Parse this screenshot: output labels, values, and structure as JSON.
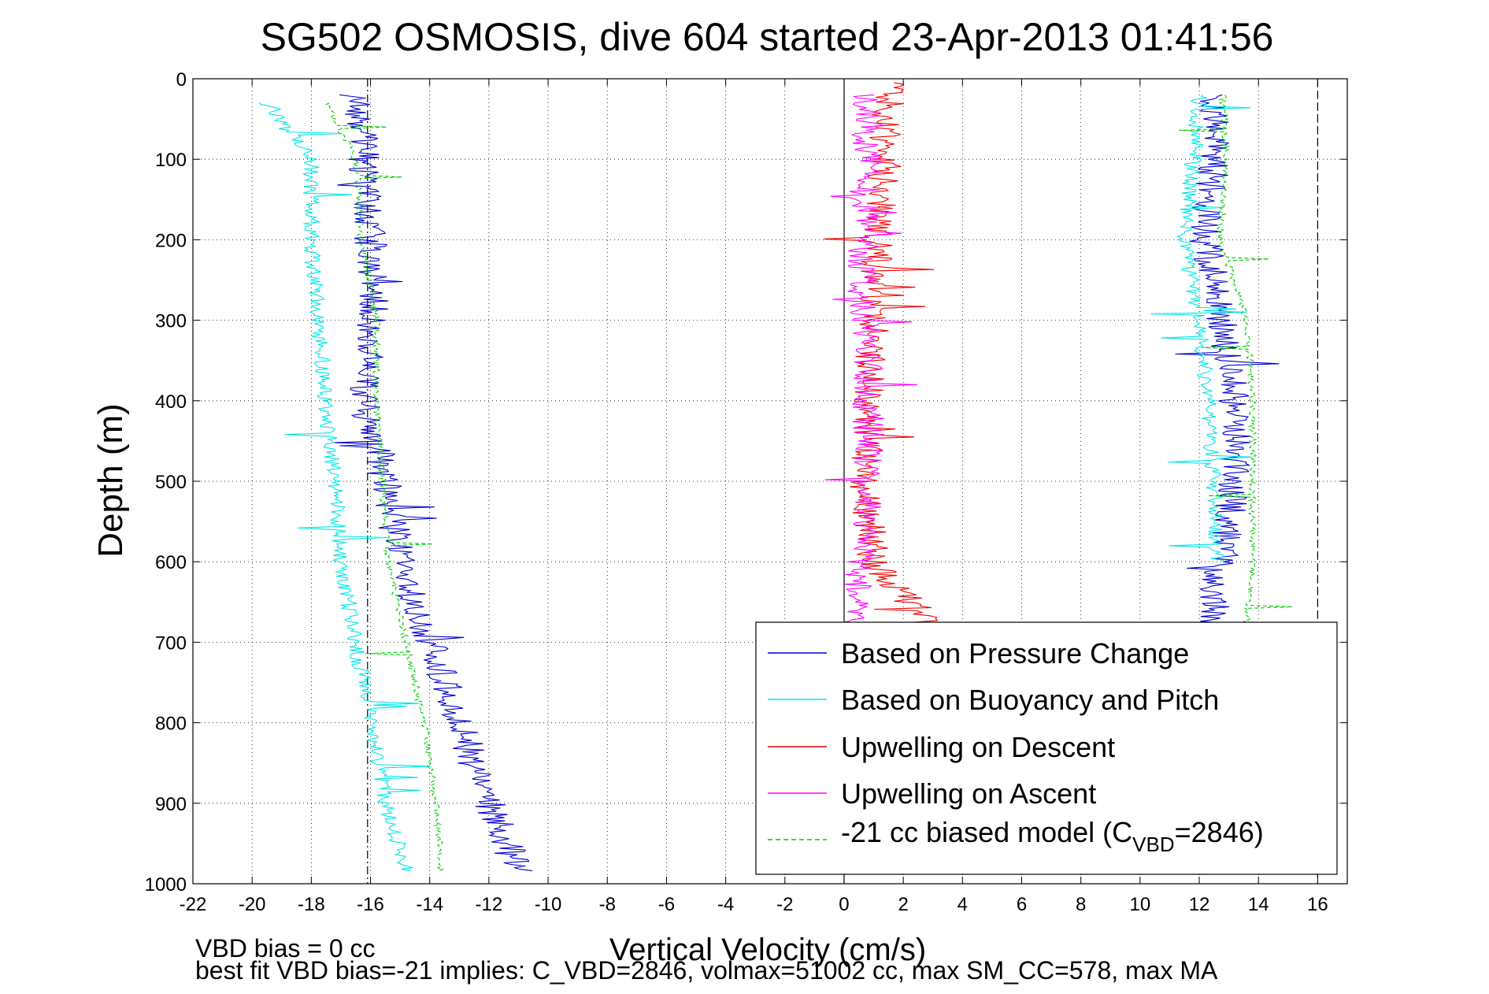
{
  "chart_data": {
    "type": "line",
    "title": "SG502 OSMOSIS, dive 604 started 23-Apr-2013 01:41:56",
    "xlabel": "Vertical Velocity (cm/s)",
    "ylabel": "Depth (m)",
    "xlim": [
      -22,
      17
    ],
    "ylim": [
      1000,
      0
    ],
    "y_reversed": true,
    "x_ticks": [
      -22,
      -20,
      -18,
      -16,
      -14,
      -12,
      -10,
      -8,
      -6,
      -4,
      -2,
      0,
      2,
      4,
      6,
      8,
      10,
      12,
      14,
      16
    ],
    "x_tick_labels": [
      "-22",
      "-20",
      "-18",
      "-16",
      "-14",
      "-12",
      "-10",
      "-8",
      "-6",
      "-4",
      "-2",
      "0",
      "2",
      "4",
      "6",
      "8",
      "10",
      "12",
      "14",
      "16"
    ],
    "y_ticks": [
      0,
      100,
      200,
      300,
      400,
      500,
      600,
      700,
      800,
      900,
      1000
    ],
    "y_tick_labels": [
      "0",
      "100",
      "200",
      "300",
      "400",
      "500",
      "600",
      "700",
      "800",
      "900",
      "1000"
    ],
    "grid": true,
    "legend_position": "bottom-right",
    "reference_lines": {
      "zero_line_x": 0,
      "dashdot_line_x": -16.1,
      "dashed_line_x": 16
    },
    "series": [
      {
        "name": "Based on Pressure Change",
        "color": "#0000cc",
        "style": "solid",
        "segments": [
          {
            "x": [
              -16.5,
              -16.2,
              -16.0,
              -15.9,
              -16.2,
              -15.5,
              -15.0,
              -14.0,
              -13.0,
              -12.0,
              -11.0
            ],
            "y": [
              20,
              100,
              200,
              300,
              400,
              500,
              600,
              700,
              800,
              900,
              985
            ]
          },
          {
            "x": [
              12.5,
              12.5,
              12.2,
              12.8,
              13.2,
              13.2,
              13.0,
              12.6,
              12.4
            ],
            "y": [
              20,
              100,
              200,
              300,
              400,
              500,
              560,
              620,
              680
            ]
          }
        ]
      },
      {
        "name": "Based on Buoyancy and Pitch",
        "color": "#00e6e6",
        "style": "solid",
        "segments": [
          {
            "x": [
              -19.5,
              -18.0,
              -18.0,
              -17.8,
              -17.5,
              -17.2,
              -17.0,
              -16.5,
              -16.0,
              -15.5,
              -14.8
            ],
            "y": [
              30,
              100,
              200,
              300,
              400,
              500,
              600,
              700,
              800,
              900,
              985
            ]
          },
          {
            "x": [
              12.0,
              11.8,
              11.5,
              12.0,
              12.3,
              12.5,
              12.6
            ],
            "y": [
              20,
              100,
              200,
              300,
              400,
              500,
              600
            ]
          }
        ]
      },
      {
        "name": "Upwelling on Descent",
        "color": "#ee0000",
        "style": "solid",
        "segments": [
          {
            "x": [
              1.5,
              1.4,
              1.1,
              1.0,
              0.8,
              0.7,
              1.0,
              2.5,
              3.0
            ],
            "y": [
              5,
              100,
              200,
              300,
              400,
              500,
              600,
              660,
              690
            ]
          }
        ]
      },
      {
        "name": "Upwelling on Ascent",
        "color": "#ff00ff",
        "style": "solid",
        "segments": [
          {
            "x": [
              0.8,
              0.8,
              0.6,
              0.7,
              0.8,
              0.9,
              0.6,
              0.3
            ],
            "y": [
              20,
              100,
              200,
              300,
              400,
              500,
              600,
              690
            ]
          }
        ]
      },
      {
        "name": "-21 cc biased model (C_VBD=2846)",
        "color": "#00cc00",
        "style": "dashed",
        "segments": [
          {
            "x": [
              -17.5,
              -16.5,
              -16.3,
              -15.8,
              -15.8,
              -15.6,
              -15.4,
              -14.8,
              -14.2,
              -13.8,
              -13.6
            ],
            "y": [
              30,
              100,
              200,
              300,
              400,
              500,
              600,
              700,
              800,
              900,
              985
            ]
          },
          {
            "x": [
              12.8,
              12.9,
              12.7,
              13.6,
              13.8,
              13.8,
              13.8,
              13.6
            ],
            "y": [
              20,
              100,
              200,
              300,
              400,
              500,
              600,
              680
            ]
          }
        ]
      }
    ],
    "legend_entries": [
      {
        "label": "Based on Pressure Change",
        "color": "#0000cc",
        "style": "solid"
      },
      {
        "label": "Based on Buoyancy and Pitch",
        "color": "#00e6e6",
        "style": "solid"
      },
      {
        "label": "Upwelling on Descent",
        "color": "#ee0000",
        "style": "solid"
      },
      {
        "label": "Upwelling on Ascent",
        "color": "#ff00ff",
        "style": "solid"
      },
      {
        "label_prefix": "-21 cc biased model (C",
        "label_sub": "VBD",
        "label_suffix": "=2846)",
        "color": "#00cc00",
        "style": "dashed"
      }
    ],
    "annotations": [
      "VBD bias = 0 cc",
      "best fit VBD bias=-21 implies: C_VBD=2846, volmax=51002 cc, max SM_CC=578, max MA"
    ]
  }
}
